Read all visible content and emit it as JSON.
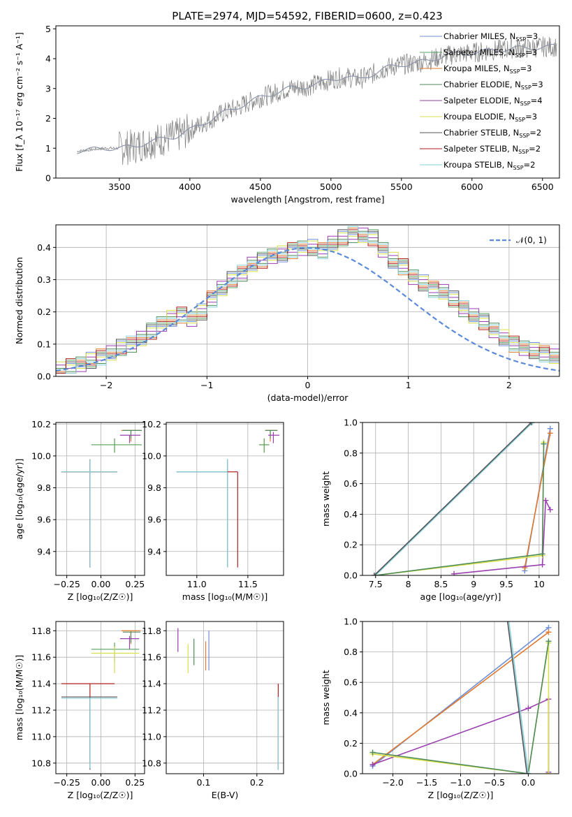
{
  "figure": {
    "title": "PLATE=2974, MJD=54592, FIBERID=0600, z=0.423",
    "series_colors": [
      "#6f8fd6",
      "#5aa064",
      "#e07a2e",
      "#4e8a5a",
      "#9a3fb0",
      "#d8e04a",
      "#555555",
      "#b01e1e",
      "#86d2de"
    ]
  },
  "chart_data": [
    {
      "id": "spectrum",
      "type": "line",
      "xlabel": "wavelength [Angstrom, rest frame]",
      "ylabel": "Flux [f_λ 10⁻¹⁷ erg cm⁻² s⁻¹ A⁻¹]",
      "xlim": [
        3050,
        6620
      ],
      "ylim": [
        0,
        5.1
      ],
      "xticks": [
        3500,
        4000,
        4500,
        5000,
        5500,
        6000,
        6500
      ],
      "yticks": [
        0,
        1,
        2,
        3,
        4,
        5
      ],
      "grid": false,
      "legend_position": "top-right",
      "data_color": "#7f7f7f",
      "model_color": "#86d2de",
      "continuum_points": [
        [
          3200,
          0.9
        ],
        [
          3300,
          0.95
        ],
        [
          3400,
          1.0
        ],
        [
          3500,
          1.0
        ],
        [
          3600,
          1.05
        ],
        [
          3700,
          1.2
        ],
        [
          3800,
          1.3
        ],
        [
          3900,
          1.4
        ],
        [
          4000,
          1.6
        ],
        [
          4100,
          1.85
        ],
        [
          4200,
          2.1
        ],
        [
          4300,
          2.3
        ],
        [
          4400,
          2.5
        ],
        [
          4500,
          2.7
        ],
        [
          4600,
          2.85
        ],
        [
          4700,
          3.0
        ],
        [
          4800,
          3.05
        ],
        [
          4900,
          3.15
        ],
        [
          5000,
          3.3
        ],
        [
          5100,
          3.4
        ],
        [
          5200,
          3.3
        ],
        [
          5300,
          3.5
        ],
        [
          5400,
          3.7
        ],
        [
          5500,
          3.8
        ],
        [
          5600,
          3.85
        ],
        [
          5700,
          3.95
        ],
        [
          5800,
          4.1
        ],
        [
          5900,
          4.15
        ],
        [
          6000,
          4.2
        ],
        [
          6100,
          4.25
        ],
        [
          6200,
          4.3
        ],
        [
          6300,
          4.35
        ],
        [
          6400,
          4.35
        ],
        [
          6500,
          4.4
        ],
        [
          6600,
          4.4
        ]
      ],
      "legend": [
        {
          "label": "Chabrier MILES, N",
          "sub": "SSP",
          "tail": "=3"
        },
        {
          "label": "Salpeter MILES, N",
          "sub": "SSP",
          "tail": "=3"
        },
        {
          "label": "Kroupa MILES, N",
          "sub": "SSP",
          "tail": "=3"
        },
        {
          "label": "Chabrier ELODIE, N",
          "sub": "SSP",
          "tail": "=3"
        },
        {
          "label": "Salpeter ELODIE, N",
          "sub": "SSP",
          "tail": "=4"
        },
        {
          "label": "Kroupa ELODIE, N",
          "sub": "SSP",
          "tail": "=3"
        },
        {
          "label": "Chabrier STELIB, N",
          "sub": "SSP",
          "tail": "=2"
        },
        {
          "label": "Salpeter STELIB, N",
          "sub": "SSP",
          "tail": "=2"
        },
        {
          "label": "Kroupa STELIB, N",
          "sub": "SSP",
          "tail": "=2"
        }
      ]
    },
    {
      "id": "residuals",
      "type": "line",
      "xlabel": "(data-model)/error",
      "ylabel": "Normed distribution",
      "xlim": [
        -2.5,
        2.5
      ],
      "ylim": [
        0,
        0.47
      ],
      "xticks": [
        -2,
        -1,
        0,
        1,
        2
      ],
      "yticks": [
        0.0,
        0.1,
        0.2,
        0.3,
        0.4
      ],
      "grid": true,
      "legend_position": "top-right",
      "legend": [
        {
          "label": "𝒩(0, 1)"
        }
      ],
      "bin_width": 0.1,
      "bin_start": -2.5,
      "histogram_base": [
        0.02,
        0.03,
        0.04,
        0.05,
        0.06,
        0.07,
        0.09,
        0.1,
        0.12,
        0.14,
        0.16,
        0.18,
        0.19,
        0.18,
        0.2,
        0.24,
        0.27,
        0.3,
        0.32,
        0.35,
        0.36,
        0.37,
        0.38,
        0.39,
        0.4,
        0.4,
        0.39,
        0.41,
        0.43,
        0.44,
        0.44,
        0.43,
        0.39,
        0.36,
        0.34,
        0.31,
        0.29,
        0.27,
        0.26,
        0.24,
        0.21,
        0.19,
        0.17,
        0.14,
        0.12,
        0.1,
        0.09,
        0.08,
        0.07,
        0.06
      ]
    },
    {
      "id": "age-vs-z",
      "type": "scatter",
      "xlabel": "Z [log₁₀(Z/Z☉)]",
      "ylabel": "age [log₁₀(age/yr)]",
      "xlim": [
        -0.33,
        0.32
      ],
      "ylim": [
        9.25,
        10.21
      ],
      "xticks": [
        -0.25,
        0.0,
        0.25
      ],
      "xticklabels": [
        "−0.25",
        "0.00",
        "0.25"
      ],
      "yticks": [
        9.4,
        9.6,
        9.8,
        10.0,
        10.2
      ],
      "grid": true,
      "points": [
        {
          "x": 0.22,
          "y": 10.16,
          "xerr": [
            0.07,
            0.07
          ],
          "yerr": [
            0.07,
            0.0
          ],
          "c": 2
        },
        {
          "x": 0.22,
          "y": 10.16,
          "xerr": [
            0.06,
            0.08
          ],
          "yerr": [
            0.05,
            0.0
          ],
          "c": 3
        },
        {
          "x": 0.21,
          "y": 10.13,
          "xerr": [
            0.07,
            0.08
          ],
          "yerr": [
            0.05,
            0.0
          ],
          "c": 4
        },
        {
          "x": 0.1,
          "y": 10.07,
          "xerr": [
            0.17,
            0.18
          ],
          "yerr": [
            0.05,
            0.04
          ],
          "c": 5
        },
        {
          "x": 0.1,
          "y": 10.07,
          "xerr": [
            0.17,
            0.2
          ],
          "yerr": [
            0.05,
            0.04
          ],
          "c": 1
        },
        {
          "x": -0.08,
          "y": 9.9,
          "xerr": [
            0.21,
            0.2
          ],
          "yerr": [
            0.6,
            0.08
          ],
          "c": 6
        },
        {
          "x": -0.08,
          "y": 9.9,
          "xerr": [
            0.21,
            0.2
          ],
          "yerr": [
            0.6,
            0.08
          ],
          "c": 7
        },
        {
          "x": -0.08,
          "y": 9.9,
          "xerr": [
            0.21,
            0.2
          ],
          "yerr": [
            0.6,
            0.08
          ],
          "c": 8
        }
      ]
    },
    {
      "id": "age-vs-mass",
      "type": "scatter",
      "xlabel": "mass [log₁₀(M/M☉)]",
      "ylabel": "",
      "xlim": [
        10.7,
        11.85
      ],
      "ylim": [
        9.25,
        10.21
      ],
      "xticks": [
        11.0,
        11.5
      ],
      "xticklabels": [
        "11.0",
        "11.5"
      ],
      "yticks": [
        9.4,
        9.6,
        9.8,
        10.0,
        10.2
      ],
      "grid": true,
      "points": [
        {
          "x": 11.72,
          "y": 10.16,
          "xerr": [
            0.05,
            0.07
          ],
          "yerr": [
            0.07,
            0.0
          ],
          "c": 2
        },
        {
          "x": 11.72,
          "y": 10.16,
          "xerr": [
            0.05,
            0.07
          ],
          "yerr": [
            0.05,
            0.0
          ],
          "c": 3
        },
        {
          "x": 11.75,
          "y": 10.13,
          "xerr": [
            0.05,
            0.06
          ],
          "yerr": [
            0.05,
            0.02
          ],
          "c": 4
        },
        {
          "x": 11.66,
          "y": 10.07,
          "xerr": [
            0.05,
            0.05
          ],
          "yerr": [
            0.05,
            0.04
          ],
          "c": 5
        },
        {
          "x": 11.66,
          "y": 10.07,
          "xerr": [
            0.05,
            0.05
          ],
          "yerr": [
            0.05,
            0.04
          ],
          "c": 1
        },
        {
          "x": 11.3,
          "y": 9.9,
          "xerr": [
            0.5,
            0.0
          ],
          "yerr": [
            0.6,
            0.08
          ],
          "c": 6
        },
        {
          "x": 11.3,
          "y": 9.9,
          "xerr": [
            0.5,
            0.0
          ],
          "yerr": [
            0.6,
            0.08
          ],
          "c": 8
        },
        {
          "x": 11.4,
          "y": 9.9,
          "xerr": [
            0.1,
            0.0
          ],
          "yerr": [
            0.6,
            0.0
          ],
          "c": 7
        }
      ]
    },
    {
      "id": "weight-vs-age",
      "type": "line",
      "xlabel": "age [log₁₀(age/yr)]",
      "ylabel": "mass weight",
      "xlim": [
        7.3,
        10.3
      ],
      "ylim": [
        0.0,
        1.0
      ],
      "xticks": [
        7.5,
        8.0,
        8.5,
        9.0,
        9.5,
        10.0
      ],
      "yticks": [
        0.0,
        0.2,
        0.4,
        0.6,
        0.8,
        1.0
      ],
      "grid": true,
      "series": [
        {
          "c": 0,
          "points": [
            [
              9.78,
              0.03
            ],
            [
              10.17,
              0.96
            ]
          ]
        },
        {
          "c": 2,
          "points": [
            [
              9.78,
              0.05
            ],
            [
              10.17,
              0.93
            ]
          ]
        },
        {
          "c": 4,
          "points": [
            [
              8.7,
              0.01
            ],
            [
              10.05,
              0.07
            ],
            [
              10.1,
              0.49
            ],
            [
              10.17,
              0.43
            ]
          ]
        },
        {
          "c": 5,
          "points": [
            [
              7.5,
              0.0
            ],
            [
              10.05,
              0.13
            ],
            [
              10.07,
              0.87
            ]
          ]
        },
        {
          "c": 3,
          "points": [
            [
              7.5,
              0.0
            ],
            [
              10.05,
              0.14
            ],
            [
              10.07,
              0.86
            ]
          ]
        },
        {
          "c": 8,
          "points": [
            [
              7.5,
              0.0
            ],
            [
              9.9,
              1.0
            ]
          ]
        },
        {
          "c": 6,
          "points": [
            [
              7.48,
              0.0
            ],
            [
              9.88,
              1.0
            ]
          ]
        }
      ]
    },
    {
      "id": "mass-vs-z",
      "type": "scatter",
      "xlabel": "Z [log₁₀(Z/Z☉)]",
      "ylabel": "mass [log₁₀(M/M☉)]",
      "xlim": [
        -0.33,
        0.32
      ],
      "ylim": [
        10.72,
        11.87
      ],
      "xticks": [
        -0.25,
        0.0,
        0.25
      ],
      "xticklabels": [
        "−0.25",
        "0.00",
        "0.25"
      ],
      "yticks": [
        10.8,
        11.0,
        11.2,
        11.4,
        11.6,
        11.8
      ],
      "grid": true,
      "points": [
        {
          "x": 0.22,
          "y": 11.8,
          "xerr": [
            0.07,
            0.07
          ],
          "yerr": [
            0.1,
            0.0
          ],
          "c": 2
        },
        {
          "x": 0.22,
          "y": 11.79,
          "xerr": [
            0.06,
            0.07
          ],
          "yerr": [
            0.08,
            0.0
          ],
          "c": 3
        },
        {
          "x": 0.21,
          "y": 11.74,
          "xerr": [
            0.07,
            0.07
          ],
          "yerr": [
            0.08,
            0.02
          ],
          "c": 4
        },
        {
          "x": 0.1,
          "y": 11.66,
          "xerr": [
            0.17,
            0.18
          ],
          "yerr": [
            0.1,
            0.05
          ],
          "c": 1
        },
        {
          "x": 0.1,
          "y": 11.63,
          "xerr": [
            0.17,
            0.18
          ],
          "yerr": [
            0.15,
            0.05
          ],
          "c": 5
        },
        {
          "x": -0.08,
          "y": 11.4,
          "xerr": [
            0.21,
            0.18
          ],
          "yerr": [
            0.6,
            0.0
          ],
          "c": 7
        },
        {
          "x": -0.08,
          "y": 11.3,
          "xerr": [
            0.21,
            0.2
          ],
          "yerr": [
            0.55,
            0.0
          ],
          "c": 6
        },
        {
          "x": -0.08,
          "y": 11.29,
          "xerr": [
            0.21,
            0.2
          ],
          "yerr": [
            0.53,
            0.0
          ],
          "c": 8
        }
      ]
    },
    {
      "id": "mass-vs-ebv",
      "type": "scatter",
      "xlabel": "E(B-V)",
      "ylabel": "",
      "xlim": [
        0.03,
        0.25
      ],
      "ylim": [
        10.72,
        11.87
      ],
      "xticks": [
        0.1,
        0.2
      ],
      "xticklabels": [
        "0.1",
        "0.2"
      ],
      "yticks": [
        10.8,
        11.0,
        11.2,
        11.4,
        11.6,
        11.8
      ],
      "grid": true,
      "points": [
        {
          "x": 0.052,
          "y": 11.74,
          "xerr": [
            0,
            0
          ],
          "yerr": [
            0.1,
            0.08
          ],
          "c": 4
        },
        {
          "x": 0.071,
          "y": 11.6,
          "xerr": [
            0,
            0
          ],
          "yerr": [
            0.12,
            0.1
          ],
          "c": 5
        },
        {
          "x": 0.082,
          "y": 11.66,
          "xerr": [
            0,
            0
          ],
          "yerr": [
            0.12,
            0.08
          ],
          "c": 3
        },
        {
          "x": 0.104,
          "y": 11.62,
          "xerr": [
            0,
            0
          ],
          "yerr": [
            0.12,
            0.1
          ],
          "c": 2
        },
        {
          "x": 0.11,
          "y": 11.65,
          "xerr": [
            0,
            0
          ],
          "yerr": [
            0.15,
            0.15
          ],
          "c": 0
        },
        {
          "x": 0.24,
          "y": 11.3,
          "xerr": [
            0,
            0
          ],
          "yerr": [
            0.55,
            0.1
          ],
          "c": 7
        },
        {
          "x": 0.24,
          "y": 11.2,
          "xerr": [
            0,
            0
          ],
          "yerr": [
            0.45,
            0.1
          ],
          "c": 8
        }
      ]
    },
    {
      "id": "weight-vs-z",
      "type": "line",
      "xlabel": "Z [log₁₀(Z/Z☉)]",
      "ylabel": "mass weight",
      "xlim": [
        -2.45,
        0.45
      ],
      "ylim": [
        0.0,
        1.0
      ],
      "xticks": [
        -2.0,
        -1.5,
        -1.0,
        -0.5,
        0.0
      ],
      "xticklabels": [
        "−2.0",
        "−1.5",
        "−1.0",
        "−0.5",
        "0.0"
      ],
      "yticks": [
        0.0,
        0.2,
        0.4,
        0.6,
        0.8,
        1.0
      ],
      "grid": true,
      "series": [
        {
          "c": 0,
          "points": [
            [
              -2.3,
              0.05
            ],
            [
              0.3,
              0.96
            ]
          ]
        },
        {
          "c": 2,
          "points": [
            [
              -2.3,
              0.06
            ],
            [
              0.3,
              0.93
            ]
          ]
        },
        {
          "c": 4,
          "points": [
            [
              -2.3,
              0.06
            ],
            [
              0.0,
              0.43
            ],
            [
              0.3,
              0.49
            ],
            [
              0.3,
              0.01
            ]
          ]
        },
        {
          "c": 5,
          "points": [
            [
              -2.3,
              0.13
            ],
            [
              0.0,
              0.0
            ],
            [
              0.3,
              0.86
            ],
            [
              0.3,
              0.0
            ]
          ]
        },
        {
          "c": 3,
          "points": [
            [
              -2.3,
              0.14
            ],
            [
              0.0,
              0.0
            ],
            [
              0.3,
              0.87
            ]
          ]
        },
        {
          "c": 8,
          "points": [
            [
              -0.3,
              1.05
            ],
            [
              0.0,
              0.0
            ]
          ]
        },
        {
          "c": 6,
          "points": [
            [
              -0.32,
              1.05
            ],
            [
              -0.02,
              0.0
            ]
          ]
        }
      ]
    }
  ]
}
